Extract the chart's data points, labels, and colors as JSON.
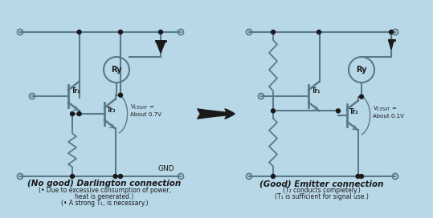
{
  "bg_color": "#b8d8e8",
  "line_color": "#5a7a8a",
  "dark_color": "#1a1a1a",
  "title_left": "(No good) Darlington connection",
  "title_right": "(Good) Emitter connection",
  "sub_left1": "(• Due to excessive consumption of power,",
  "sub_left2": "heat is generated.)",
  "sub_left3": "(• A strong T₁, is necessary.)",
  "sub_right1": "(T₂ conducts completely.)",
  "sub_right2": "(T₁ is sufficient for signal use.)",
  "gnd_text": "GND",
  "ry_text": "Ry",
  "tr1_text": "Tr₁",
  "tr2_text": "Tr₂"
}
